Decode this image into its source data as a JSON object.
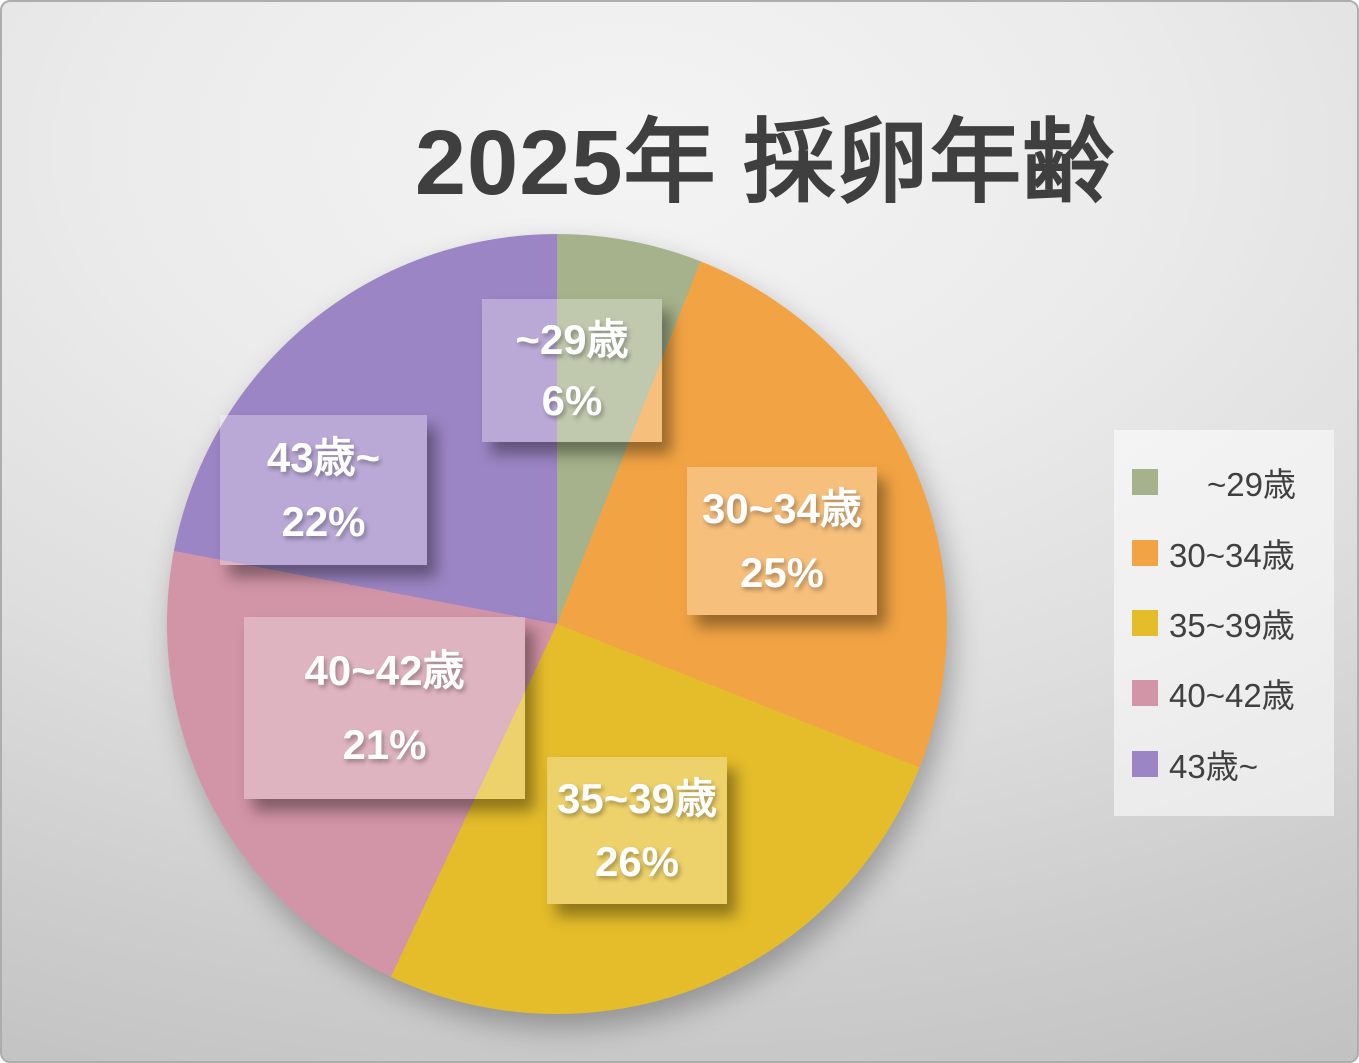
{
  "chart_data": {
    "type": "pie",
    "title": "2025年 採卵年齢",
    "legend_position": "right",
    "start_angle_deg": 0,
    "direction": "clockwise",
    "slices": [
      {
        "label": "~29歳",
        "value": 6,
        "pct_label": "6%",
        "color": "#A5B28B"
      },
      {
        "label": "30~34歳",
        "value": 25,
        "pct_label": "25%",
        "color": "#F2A444"
      },
      {
        "label": "35~39歳",
        "value": 26,
        "pct_label": "26%",
        "color": "#E5BD2A"
      },
      {
        "label": "40~42歳",
        "value": 21,
        "pct_label": "21%",
        "color": "#D294A7"
      },
      {
        "label": "43歳~",
        "value": 22,
        "pct_label": "22%",
        "color": "#9C85C4"
      }
    ],
    "background": {
      "gradient_center": "#f4f4f4",
      "gradient_edge": "#c2c2c2"
    },
    "title_color": "#3f3f3f",
    "data_label_text_color": "#ffffff"
  }
}
